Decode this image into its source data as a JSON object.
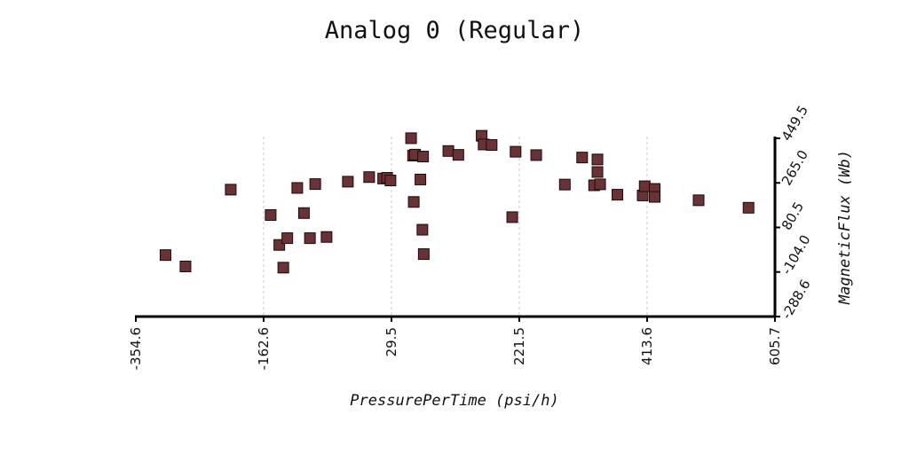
{
  "chart_data": {
    "type": "scatter",
    "title": "Analog 0 (Regular)",
    "xlabel": "PressurePerTime (psi/h)",
    "ylabel": "MagneticFlux (Wb)",
    "xlim": [
      -354.6,
      605.7
    ],
    "ylim": [
      -288.6,
      449.5
    ],
    "xticks": [
      "-354.6",
      "-162.6",
      "29.5",
      "221.5",
      "413.6",
      "605.7"
    ],
    "yticks": [
      "-288.6",
      "-104.0",
      "80.5",
      "265.0",
      "449.5"
    ],
    "grid_x": true,
    "grid_y": false,
    "marker": "square",
    "colors": {
      "marker_fill": "#6b3236",
      "marker_stroke": "#1a0a0a"
    },
    "x": [
      -310,
      -280,
      -212,
      -152,
      -139,
      -133,
      -127,
      -112,
      -102,
      -93,
      -85,
      -68,
      -36,
      -4,
      17,
      23,
      28,
      59,
      62,
      63,
      65,
      73,
      76,
      78,
      77,
      115,
      130,
      165,
      168,
      180,
      211,
      216,
      247,
      290,
      316,
      334,
      339,
      339,
      343,
      369,
      407,
      410,
      425,
      425,
      491,
      566
    ],
    "y": [
      -34,
      -81,
      237,
      132,
      8,
      -86,
      36,
      244,
      140,
      36,
      260,
      41,
      270,
      289,
      283,
      286,
      275,
      450,
      378,
      186,
      382,
      279,
      71,
      -30,
      374,
      397,
      381,
      460,
      424,
      422,
      123,
      394,
      380,
      258,
      370,
      255,
      362,
      310,
      259,
      216,
      213,
      251,
      240,
      207,
      193,
      162
    ]
  }
}
